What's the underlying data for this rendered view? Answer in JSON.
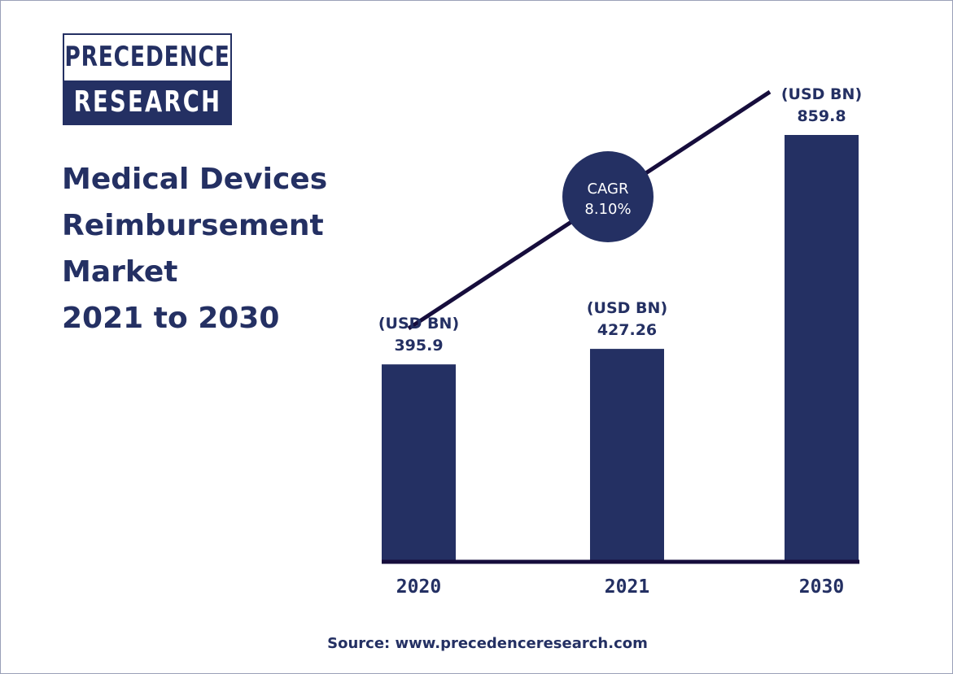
{
  "brand": {
    "logo_line1": "PRECEDENCE",
    "logo_line2": "RESEARCH"
  },
  "title": {
    "line1": "Medical Devices",
    "line2": "Reimbursement",
    "line3": "Market",
    "line4": "2021 to 2030"
  },
  "source": "Source: www.precedenceresearch.com",
  "cagr": {
    "label": "CAGR",
    "value": "8.10%"
  },
  "colors": {
    "navy": "#243063",
    "dark_line": "#160d3c",
    "background": "#ffffff"
  },
  "chart_data": {
    "type": "bar",
    "categories": [
      "2020",
      "2021",
      "2030"
    ],
    "values": [
      395.9,
      427.26,
      859.8
    ],
    "value_labels": [
      "395.9",
      "427.26",
      "859.8"
    ],
    "unit_label": "(USD BN)",
    "ylim": [
      0,
      1000
    ],
    "grid": false,
    "trend_line": true
  }
}
